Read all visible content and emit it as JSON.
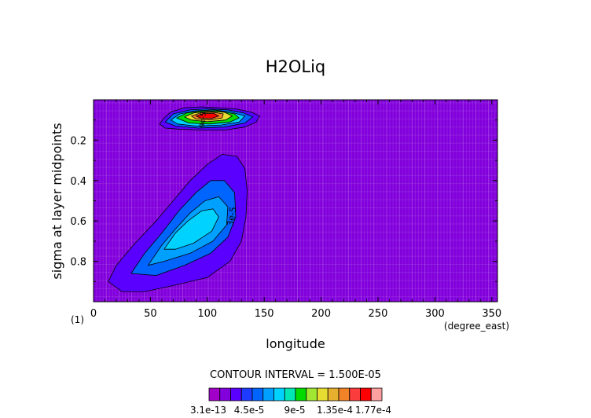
{
  "chart_data": {
    "type": "heatmap",
    "title": "H2OLiq",
    "xlabel": "longitude",
    "ylabel": "sigma at layer midpoints",
    "x_units": "(degree_east)",
    "panel_label": "(1)",
    "xlim": [
      0,
      355
    ],
    "ylim": [
      1.0,
      0.0
    ],
    "x_ticks": [
      "0",
      "50",
      "100",
      "150",
      "200",
      "250",
      "300",
      "350"
    ],
    "y_ticks": [
      "0.2",
      "0.4",
      "0.6",
      "0.8"
    ],
    "contour_interval_text": "CONTOUR INTERVAL = 1.500E-05",
    "colorbar": {
      "labels": [
        "3.1e-13",
        "4.5e-5",
        "9e-5",
        "1.35e-4",
        "1.77e-4"
      ],
      "colors": [
        "#a000c8",
        "#8200dc",
        "#5a00ff",
        "#1e3cff",
        "#0064ff",
        "#00a0ff",
        "#00d2ff",
        "#00e6b4",
        "#00dc00",
        "#a0e632",
        "#e6dc32",
        "#e6af2d",
        "#f08228",
        "#fa3c3c",
        "#ff0000",
        "#ffa0a0"
      ]
    },
    "contour_labels": [
      "3e-5",
      "9e-5"
    ],
    "blobs": [
      {
        "name": "upper-blob",
        "levels": [
          {
            "color": "#5a00ff",
            "points": [
              [
                58,
                0.12
              ],
              [
                62,
                0.09
              ],
              [
                68,
                0.06
              ],
              [
                80,
                0.04
              ],
              [
                95,
                0.035
              ],
              [
                110,
                0.04
              ],
              [
                125,
                0.045
              ],
              [
                138,
                0.06
              ],
              [
                146,
                0.08
              ],
              [
                143,
                0.11
              ],
              [
                133,
                0.135
              ],
              [
                115,
                0.15
              ],
              [
                95,
                0.15
              ],
              [
                75,
                0.145
              ],
              [
                63,
                0.14
              ]
            ]
          },
          {
            "color": "#0064ff",
            "points": [
              [
                63,
                0.11
              ],
              [
                70,
                0.07
              ],
              [
                85,
                0.05
              ],
              [
                100,
                0.045
              ],
              [
                118,
                0.05
              ],
              [
                132,
                0.065
              ],
              [
                140,
                0.085
              ],
              [
                133,
                0.115
              ],
              [
                115,
                0.135
              ],
              [
                92,
                0.14
              ],
              [
                72,
                0.13
              ]
            ]
          },
          {
            "color": "#00d2ff",
            "points": [
              [
                68,
                0.1
              ],
              [
                76,
                0.07
              ],
              [
                90,
                0.055
              ],
              [
                105,
                0.05
              ],
              [
                120,
                0.06
              ],
              [
                133,
                0.08
              ],
              [
                128,
                0.11
              ],
              [
                112,
                0.125
              ],
              [
                90,
                0.13
              ],
              [
                74,
                0.12
              ]
            ]
          },
          {
            "color": "#00dc00",
            "points": [
              [
                73,
                0.09
              ],
              [
                82,
                0.065
              ],
              [
                95,
                0.055
              ],
              [
                110,
                0.055
              ],
              [
                124,
                0.07
              ],
              [
                128,
                0.09
              ],
              [
                120,
                0.11
              ],
              [
                102,
                0.12
              ],
              [
                84,
                0.115
              ]
            ]
          },
          {
            "color": "#e6dc32",
            "points": [
              [
                80,
                0.085
              ],
              [
                88,
                0.065
              ],
              [
                100,
                0.058
              ],
              [
                115,
                0.062
              ],
              [
                122,
                0.08
              ],
              [
                116,
                0.1
              ],
              [
                100,
                0.108
              ],
              [
                86,
                0.1
              ]
            ]
          },
          {
            "color": "#f08228",
            "points": [
              [
                86,
                0.08
              ],
              [
                94,
                0.065
              ],
              [
                105,
                0.062
              ],
              [
                114,
                0.07
              ],
              [
                113,
                0.09
              ],
              [
                102,
                0.1
              ],
              [
                90,
                0.095
              ]
            ]
          },
          {
            "color": "#ff0000",
            "points": [
              [
                90,
                0.08
              ],
              [
                97,
                0.068
              ],
              [
                106,
                0.068
              ],
              [
                110,
                0.08
              ],
              [
                104,
                0.092
              ],
              [
                94,
                0.09
              ]
            ]
          }
        ]
      },
      {
        "name": "lower-blob",
        "levels": [
          {
            "color": "#5a00ff",
            "points": [
              [
                13,
                0.9
              ],
              [
                20,
                0.82
              ],
              [
                35,
                0.72
              ],
              [
                55,
                0.6
              ],
              [
                70,
                0.5
              ],
              [
                85,
                0.4
              ],
              [
                100,
                0.32
              ],
              [
                113,
                0.27
              ],
              [
                126,
                0.28
              ],
              [
                133,
                0.34
              ],
              [
                135,
                0.45
              ],
              [
                134,
                0.58
              ],
              [
                130,
                0.7
              ],
              [
                120,
                0.8
              ],
              [
                100,
                0.88
              ],
              [
                70,
                0.92
              ],
              [
                45,
                0.95
              ],
              [
                25,
                0.95
              ]
            ]
          },
          {
            "color": "#0064ff",
            "points": [
              [
                33,
                0.86
              ],
              [
                45,
                0.76
              ],
              [
                60,
                0.66
              ],
              [
                75,
                0.55
              ],
              [
                90,
                0.46
              ],
              [
                103,
                0.4
              ],
              [
                115,
                0.4
              ],
              [
                124,
                0.46
              ],
              [
                125,
                0.58
              ],
              [
                118,
                0.68
              ],
              [
                103,
                0.76
              ],
              [
                80,
                0.82
              ],
              [
                55,
                0.87
              ]
            ]
          },
          {
            "color": "#00a0ff",
            "points": [
              [
                48,
                0.82
              ],
              [
                60,
                0.72
              ],
              [
                72,
                0.64
              ],
              [
                85,
                0.56
              ],
              [
                98,
                0.5
              ],
              [
                110,
                0.48
              ],
              [
                118,
                0.53
              ],
              [
                117,
                0.62
              ],
              [
                105,
                0.7
              ],
              [
                85,
                0.76
              ],
              [
                62,
                0.8
              ]
            ]
          },
          {
            "color": "#00d2ff",
            "points": [
              [
                62,
                0.74
              ],
              [
                72,
                0.66
              ],
              [
                83,
                0.6
              ],
              [
                95,
                0.55
              ],
              [
                105,
                0.54
              ],
              [
                110,
                0.58
              ],
              [
                104,
                0.65
              ],
              [
                88,
                0.71
              ],
              [
                72,
                0.74
              ]
            ]
          }
        ]
      }
    ]
  }
}
